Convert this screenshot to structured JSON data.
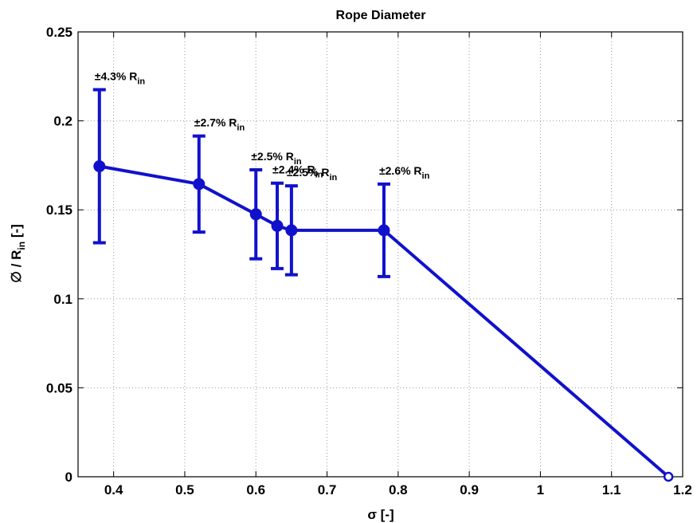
{
  "chart_data": {
    "type": "line",
    "title": "Rope Diameter",
    "xlabel": "σ [-]",
    "ylabel": {
      "prefix": "∅ / R",
      "sub": "in",
      "suffix": " [-]"
    },
    "xlim": [
      0.35,
      1.2
    ],
    "ylim": [
      0,
      0.25
    ],
    "xticks": [
      "0.4",
      "0.5",
      "0.6",
      "0.7",
      "0.8",
      "0.9",
      "1",
      "1.1",
      "1.2"
    ],
    "yticks": [
      "0",
      "0.05",
      "0.1",
      "0.15",
      "0.2",
      "0.25"
    ],
    "grid": true,
    "series": [
      {
        "color": "#1111cc",
        "points": [
          {
            "x": 0.38,
            "y": 0.1745,
            "err": 0.043,
            "label": "±4.3% R",
            "label_sub": "in"
          },
          {
            "x": 0.52,
            "y": 0.1645,
            "err": 0.027,
            "label": "±2.7% R",
            "label_sub": "in"
          },
          {
            "x": 0.6,
            "y": 0.1475,
            "err": 0.025,
            "label": "±2.5% R",
            "label_sub": "in"
          },
          {
            "x": 0.63,
            "y": 0.141,
            "err": 0.024,
            "label": "±2.4% R",
            "label_sub": "in"
          },
          {
            "x": 0.65,
            "y": 0.1385,
            "err": 0.025,
            "label": "±2.5% R",
            "label_sub": "in"
          },
          {
            "x": 0.78,
            "y": 0.1385,
            "err": 0.026,
            "label": "±2.6% R",
            "label_sub": "in"
          },
          {
            "x": 1.18,
            "y": 0.0
          }
        ]
      }
    ]
  }
}
